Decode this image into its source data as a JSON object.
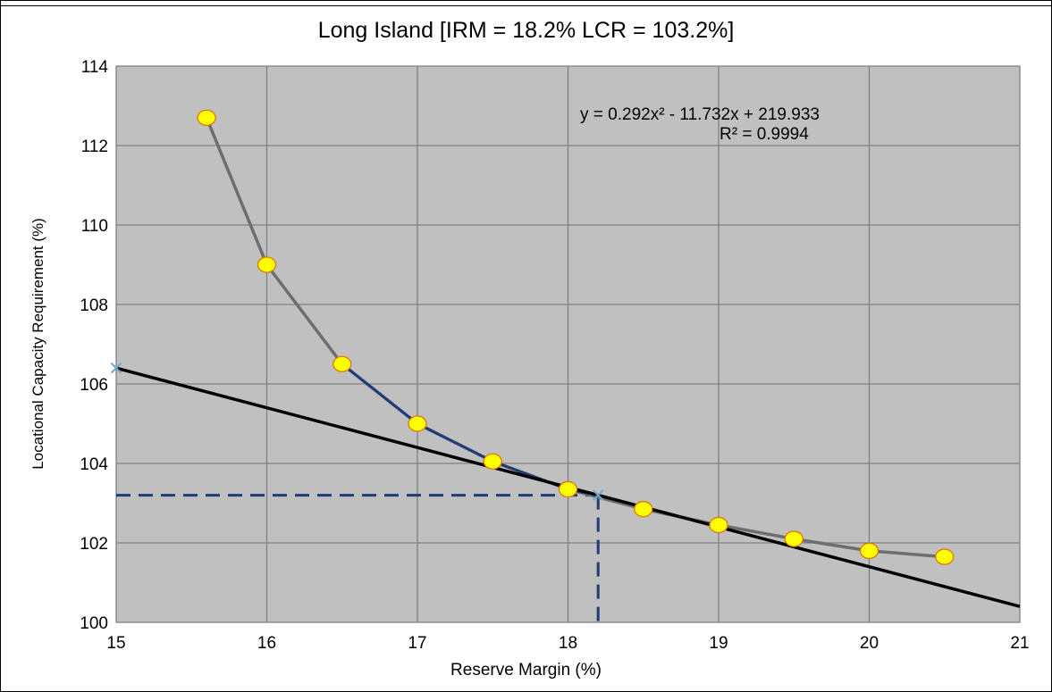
{
  "chart_data": {
    "type": "line",
    "title": "Long Island [IRM = 18.2% LCR = 103.2%]",
    "xlabel": "Reserve Margin (%)",
    "ylabel": "Locational Capacity Requirement (%)",
    "xlim": [
      15,
      21
    ],
    "ylim": [
      100,
      114
    ],
    "x_ticks": [
      "15",
      "16",
      "17",
      "18",
      "19",
      "20",
      "21"
    ],
    "y_ticks": [
      "100",
      "102",
      "104",
      "106",
      "108",
      "110",
      "112",
      "114"
    ],
    "grid": true,
    "plot_background": "#c0c0c0",
    "series": [
      {
        "role": "data points (yellow markers, gray line)",
        "color": "#6e6e6e",
        "marker_color": "#ffff00",
        "x": [
          15.6,
          16.0,
          16.5,
          17.0,
          17.5,
          18.0,
          18.5,
          19.0,
          19.5,
          20.0,
          20.5
        ],
        "y": [
          112.7,
          109.0,
          106.5,
          105.0,
          104.05,
          103.35,
          102.85,
          102.45,
          102.1,
          101.8,
          101.65
        ]
      },
      {
        "role": "fitted curve segment (navy)",
        "color": "#1f3b78",
        "x": [
          16.5,
          17.0,
          17.5,
          18.0,
          18.2
        ],
        "y": [
          106.5,
          105.0,
          104.05,
          103.35,
          103.2
        ]
      },
      {
        "role": "tangent line (black)",
        "color": "#000000",
        "x": [
          15,
          21
        ],
        "y": [
          106.4,
          100.4
        ]
      }
    ],
    "selected_point": {
      "x": 18.2,
      "y": 103.2,
      "marker": "x",
      "color": "#6fa8c8"
    },
    "tangent_start_marker": {
      "x": 15,
      "y": 106.4,
      "marker": "x",
      "color": "#6fa8c8"
    },
    "guide_lines": {
      "style": "dashed",
      "color": "#1f3b78"
    },
    "annotation": {
      "equation_text": "y = 0.292x² - 11.732x + 219.933",
      "r2_text": "R² = 0.9994"
    }
  }
}
